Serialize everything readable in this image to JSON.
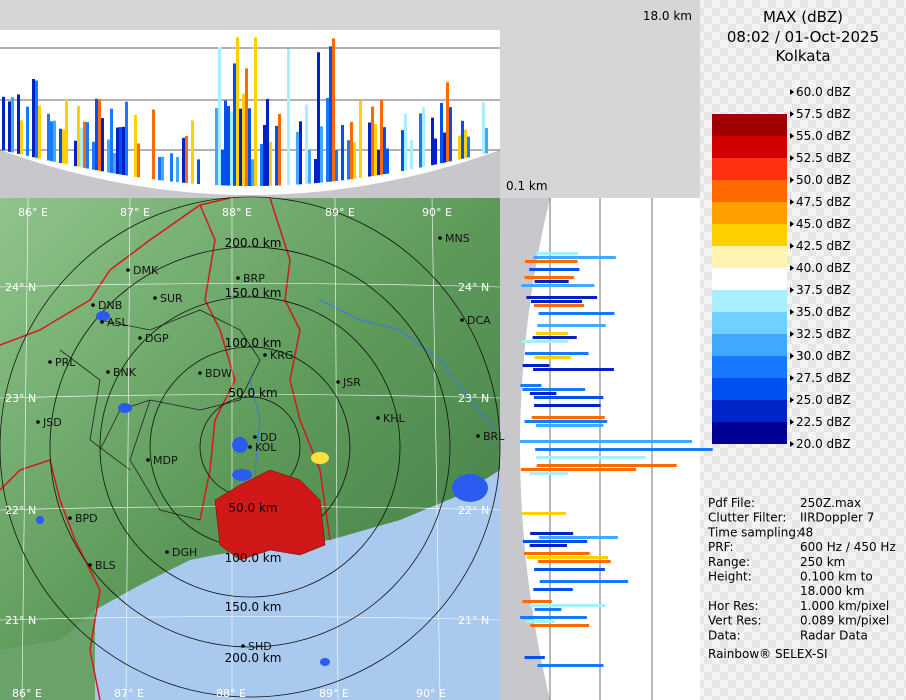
{
  "header": {
    "title": "MAX (dBZ)",
    "time": "08:02 / 01-Oct-2025",
    "station": "Kolkata"
  },
  "top_scale": "18.0 km",
  "bottom_scale": "0.1 km",
  "map": {
    "lon_labels": [
      "86° E",
      "87° E",
      "88° E",
      "89° E",
      "90° E"
    ],
    "lat_labels": [
      "24° N",
      "23° N",
      "22° N",
      "21° N"
    ],
    "range_labels_north": [
      "200.0 km",
      "150.0 km",
      "100.0 km",
      "50.0 km"
    ],
    "range_labels_south": [
      "50.0 km",
      "100.0 km",
      "150.0 km",
      "200.0 km"
    ],
    "cities": [
      "MNS",
      "BRP",
      "DMK",
      "DNB",
      "ASL",
      "SUR",
      "DGP",
      "KRG",
      "PRL",
      "BNK",
      "BDW",
      "JSR",
      "KHL",
      "JSD",
      "DD",
      "KOL",
      "MDP",
      "DCA",
      "BRL",
      "BPD",
      "DGH",
      "BLS",
      "SHD"
    ]
  },
  "legend": {
    "levels": [
      "60.0 dBZ",
      "57.5 dBZ",
      "55.0 dBZ",
      "52.5 dBZ",
      "50.0 dBZ",
      "47.5 dBZ",
      "45.0 dBZ",
      "42.5 dBZ",
      "40.0 dBZ",
      "37.5 dBZ",
      "35.0 dBZ",
      "32.5 dBZ",
      "30.0 dBZ",
      "27.5 dBZ",
      "25.0 dBZ",
      "22.5 dBZ",
      "20.0 dBZ"
    ],
    "bands": [
      "#a00000",
      "#d00000",
      "#ff3010",
      "#ff6a00",
      "#ffa000",
      "#ffd000",
      "#fff3b0",
      "#ffffff",
      "#a8f0ff",
      "#70d0ff",
      "#40a8ff",
      "#1878ff",
      "#0050f0",
      "#0024c8",
      "#000094"
    ]
  },
  "info": [
    [
      "Pdf File:",
      "250Z.max"
    ],
    [
      "Clutter Filter:",
      "IIRDoppler 7"
    ],
    [
      "Time sampling:",
      "48"
    ],
    [
      "PRF:",
      "600 Hz / 450 Hz"
    ],
    [
      "Range:",
      "250 km"
    ],
    [
      "Height:",
      "0.100 km to"
    ],
    [
      "",
      "18.000 km"
    ],
    [
      "Hor Res:",
      "1.000 km/pixel"
    ],
    [
      "Vert Res:",
      "0.089 km/pixel"
    ],
    [
      "Data:",
      "Radar Data"
    ]
  ],
  "footer": "Rainbow® SELEX-SI"
}
